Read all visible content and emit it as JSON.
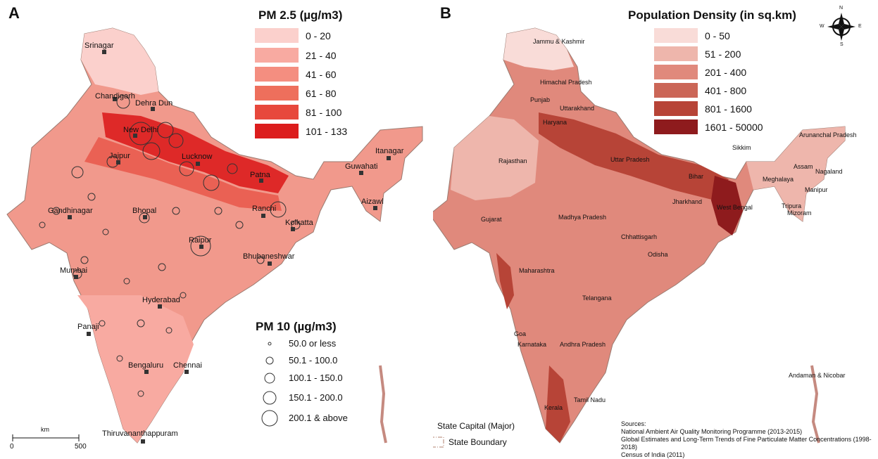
{
  "panel_a": {
    "letter": "A",
    "pm25_legend": {
      "title": "PM 2.5 (µg/m3)",
      "items": [
        {
          "label": "0 - 20",
          "color": "#fbd0cc"
        },
        {
          "label": "21 - 40",
          "color": "#f8aaa1"
        },
        {
          "label": "41 - 60",
          "color": "#f48e80"
        },
        {
          "label": "61 - 80",
          "color": "#ee6f5c"
        },
        {
          "label": "81 - 100",
          "color": "#e7483c"
        },
        {
          "label": "101 - 133",
          "color": "#dc1d1d"
        }
      ]
    },
    "pm10_legend": {
      "title": "PM 10 (µg/m3)",
      "items": [
        "50.0 or less",
        "50.1 - 100.0",
        "100.1 - 150.0",
        "150.1 - 200.0",
        "200.1 & above"
      ]
    },
    "cities": [
      "Srinagar",
      "Chandigarh",
      "Dehra Dun",
      "New Delhi",
      "Jaipur",
      "Lucknow",
      "Patna",
      "Itanagar",
      "Guwahati",
      "Aizawl",
      "Gandhinagar",
      "Bhopal",
      "Ranchi",
      "Kolkatta",
      "Raipur",
      "Bhubaneshwar",
      "Mumbai",
      "Hyderabad",
      "Panaji",
      "Bengaluru",
      "Chennai",
      "Thiruvananthappuram"
    ],
    "scale_bar": {
      "unit": "km",
      "start": "0",
      "end": "500"
    }
  },
  "panel_b": {
    "letter": "B",
    "density_legend": {
      "title": "Population Density (in sq.km)",
      "items": [
        {
          "label": "0 - 50",
          "color": "#f9dcd8"
        },
        {
          "label": "51 - 200",
          "color": "#eeb6ac"
        },
        {
          "label": "201 - 400",
          "color": "#e0897c"
        },
        {
          "label": "401 - 800",
          "color": "#cb6657"
        },
        {
          "label": "801 - 1600",
          "color": "#b74437"
        },
        {
          "label": "1601 - 50000",
          "color": "#8e1b1d"
        }
      ]
    },
    "states": [
      "Jammu & Kashmir",
      "Himachal Pradesh",
      "Punjab",
      "Uttarakhand",
      "Haryana",
      "Arunanchal Pradesh",
      "Sikkim",
      "Rajasthan",
      "Uttar Pradesh",
      "Assam",
      "Nagaland",
      "Bihar",
      "Meghalaya",
      "Manipur",
      "Jharkhand",
      "West Bengal",
      "Tripura",
      "Mizoram",
      "Gujarat",
      "Madhya Pradesh",
      "Chhattisgarh",
      "Odisha",
      "Maharashtra",
      "Telangana",
      "Goa",
      "Karnataka",
      "Andhra Pradesh",
      "Andaman & Nicobar",
      "Tamil Nadu",
      "Kerala"
    ],
    "compass": {
      "n": "N",
      "s": "S",
      "e": "E",
      "w": "W"
    },
    "map_legend": {
      "capital": "State Capital (Major)",
      "boundary": "State Boundary"
    },
    "sources": {
      "heading": "Sources:",
      "lines": [
        "National Ambient Air Quality Monitoring Programme (2013-2015)",
        "Global Estimates and Long-Term Trends of Fine Particulate Matter Concentrations (1998-2018)",
        "Census of India (2011)"
      ]
    }
  }
}
